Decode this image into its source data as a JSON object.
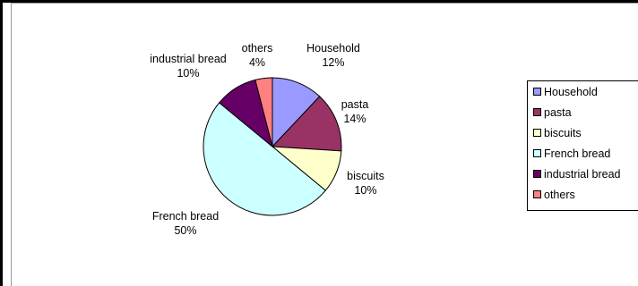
{
  "chart_data": {
    "type": "pie",
    "title": "",
    "series": [
      {
        "name": "Household",
        "value": 12,
        "label": "12%",
        "color": "#9999ff"
      },
      {
        "name": "pasta",
        "value": 14,
        "label": "14%",
        "color": "#993366"
      },
      {
        "name": "biscuits",
        "value": 10,
        "label": "10%",
        "color": "#ffffcc"
      },
      {
        "name": "French bread",
        "value": 50,
        "label": "50%",
        "color": "#ccffff"
      },
      {
        "name": "industrial bread",
        "value": 10,
        "label": "10%",
        "color": "#660066"
      },
      {
        "name": "others",
        "value": 4,
        "label": "4%",
        "color": "#ff8080"
      }
    ],
    "start_angle_deg": 0,
    "direction": "clockwise",
    "legend_position": "right"
  }
}
